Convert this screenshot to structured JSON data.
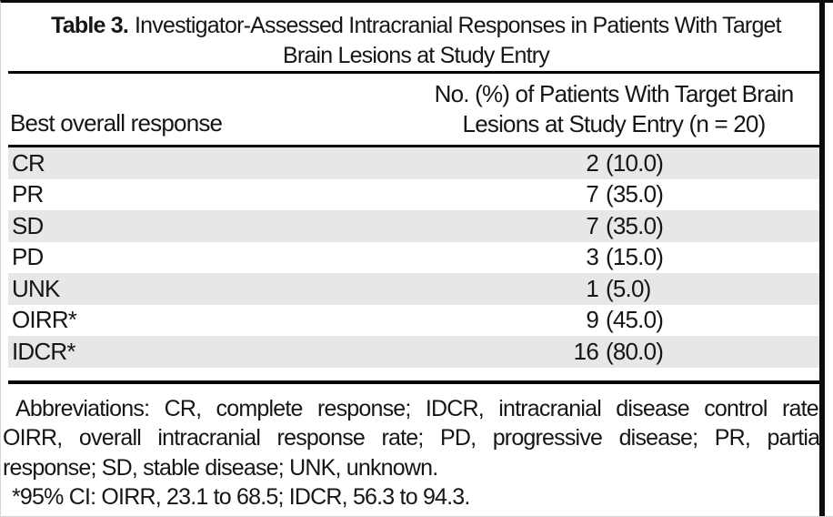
{
  "table": {
    "title_label": "Table 3.",
    "title_line1": "Investigator-Assessed Intracranial Responses in Patients With Target",
    "title_line2": "Brain Lesions at Study Entry",
    "col1_header": "Best overall response",
    "col2_header_line1": "No. (%) of Patients With Target Brain",
    "col2_header_line2": "Lesions at Study Entry (n = 20)",
    "rows": [
      {
        "label": "CR",
        "count": "2",
        "pct": "(10.0)"
      },
      {
        "label": "PR",
        "count": "7",
        "pct": "(35.0)"
      },
      {
        "label": "SD",
        "count": "7",
        "pct": "(35.0)"
      },
      {
        "label": "PD",
        "count": "3",
        "pct": "(15.0)"
      },
      {
        "label": "UNK",
        "count": "1",
        "pct": "(5.0)"
      },
      {
        "label": "OIRR*",
        "count": "9",
        "pct": "(45.0)"
      },
      {
        "label": "IDCR*",
        "count": "16",
        "pct": "(80.0)"
      }
    ]
  },
  "footnotes": {
    "line1": "Abbreviations: CR, complete response; IDCR, intracranial disease control rate;",
    "line2": "OIRR, overall intracranial response rate; PD, progressive disease; PR, partial",
    "line3": "response; SD, stable disease; UNK, unknown.",
    "line4": "*95% CI: OIRR, 23.1 to 68.5; IDCR, 56.3 to 94.3."
  },
  "colors": {
    "row_stripe": "#e7e6e9",
    "rule": "#050505",
    "text": "#161616",
    "column_bar": "#0a0a0a"
  }
}
